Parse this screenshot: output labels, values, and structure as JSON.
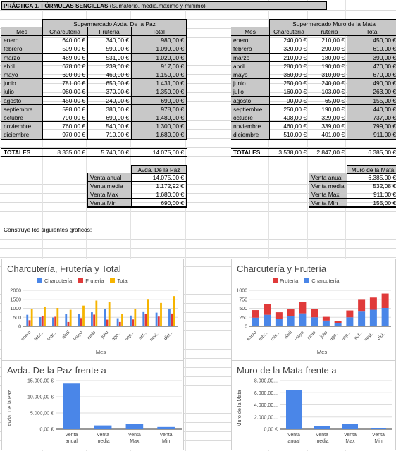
{
  "title_bold": "PRÁCTICA 1. FÓRMULAS SENCILLAS",
  "title_rest": "(Sumatorio, media,máximo y mínimo)",
  "t1": {
    "store": "Supermercado Avda. De la Paz",
    "headers": [
      "Mes",
      "Charcutería",
      "Frutería",
      "Total"
    ],
    "rows": [
      [
        "enero",
        "640,00 €",
        "340,00 €",
        "980,00 €"
      ],
      [
        "febrero",
        "509,00 €",
        "590,00 €",
        "1.099,00 €"
      ],
      [
        "marzo",
        "489,00 €",
        "531,00 €",
        "1.020,00 €"
      ],
      [
        "abril",
        "678,00 €",
        "239,00 €",
        "917,00 €"
      ],
      [
        "mayo",
        "690,00 €",
        "460,00 €",
        "1.150,00 €"
      ],
      [
        "junio",
        "781,00 €",
        "650,00 €",
        "1.431,00 €"
      ],
      [
        "julio",
        "980,00 €",
        "370,00 €",
        "1.350,00 €"
      ],
      [
        "agosto",
        "450,00 €",
        "240,00 €",
        "690,00 €"
      ],
      [
        "septiembre",
        "598,00 €",
        "380,00 €",
        "978,00 €"
      ],
      [
        "octubre",
        "790,00 €",
        "690,00 €",
        "1.480,00 €"
      ],
      [
        "noviembre",
        "760,00 €",
        "540,00 €",
        "1.300,00 €"
      ],
      [
        "diciembre",
        "970,00 €",
        "710,00 €",
        "1.680,00 €"
      ]
    ],
    "totals": [
      "TOTALES",
      "8.335,00 €",
      "5.740,00 €",
      "14.075,00 €"
    ],
    "stats_header": "Avda. De la Paz",
    "stats": [
      [
        "Venta anual",
        "14.075,00 €"
      ],
      [
        "Venta media",
        "1.172,92 €"
      ],
      [
        "Venta Max",
        "1.680,00 €"
      ],
      [
        "Venta Min",
        "690,00 €"
      ]
    ]
  },
  "t2": {
    "store": "Supermercado Muro de la Mata",
    "headers": [
      "Mes",
      "Charcutería",
      "Frutería",
      "Total"
    ],
    "rows": [
      [
        "enero",
        "240,00 €",
        "210,00 €",
        "450,00 €"
      ],
      [
        "febrero",
        "320,00 €",
        "290,00 €",
        "610,00 €"
      ],
      [
        "marzo",
        "210,00 €",
        "180,00 €",
        "390,00 €"
      ],
      [
        "abril",
        "280,00 €",
        "190,00 €",
        "470,00 €"
      ],
      [
        "mayo",
        "360,00 €",
        "310,00 €",
        "670,00 €"
      ],
      [
        "junio",
        "250,00 €",
        "240,00 €",
        "490,00 €"
      ],
      [
        "julio",
        "160,00 €",
        "103,00 €",
        "263,00 €"
      ],
      [
        "agosto",
        "90,00 €",
        "65,00 €",
        "155,00 €"
      ],
      [
        "septiembre",
        "250,00 €",
        "190,00 €",
        "440,00 €"
      ],
      [
        "octubre",
        "408,00 €",
        "329,00 €",
        "737,00 €"
      ],
      [
        "noviembre",
        "460,00 €",
        "339,00 €",
        "799,00 €"
      ],
      [
        "diciembre",
        "510,00 €",
        "401,00 €",
        "911,00 €"
      ]
    ],
    "totals": [
      "TOTALES",
      "3.538,00 €",
      "2.847,00 €",
      "6.385,00 €"
    ],
    "stats_header": "Muro de la Mata",
    "stats": [
      [
        "Venta anual",
        "6.385,00 €"
      ],
      [
        "Venta media",
        "532,08 €"
      ],
      [
        "Venta Max",
        "911,00 €"
      ],
      [
        "Venta Min",
        "155,00 €"
      ]
    ]
  },
  "instruction": "Construye los siguientes gráficos:",
  "colors": {
    "charcuteria": "#4a86e8",
    "fruteria": "#e03a3a",
    "total": "#f6b400",
    "grid": "#000000"
  },
  "chart_data": [
    {
      "type": "bar",
      "title": "Charcutería, Frutería y Total",
      "xlabel": "Mes",
      "categories": [
        "enero",
        "febr...",
        "mar...",
        "abril",
        "mayo",
        "junio",
        "julio",
        "ago...",
        "sep...",
        "oct...",
        "novi...",
        "dici..."
      ],
      "yticks": [
        "2000",
        "1500",
        "1000",
        "500",
        "0"
      ],
      "ylim": [
        0,
        2000
      ],
      "series": [
        {
          "name": "Charcutería",
          "values": [
            640,
            509,
            489,
            678,
            690,
            781,
            980,
            450,
            598,
            790,
            760,
            970
          ]
        },
        {
          "name": "Frutería",
          "values": [
            340,
            590,
            531,
            239,
            460,
            650,
            370,
            240,
            380,
            690,
            540,
            710
          ]
        },
        {
          "name": "Total",
          "values": [
            980,
            1099,
            1020,
            917,
            1150,
            1431,
            1350,
            690,
            978,
            1480,
            1300,
            1680
          ]
        }
      ],
      "legend": "top"
    },
    {
      "type": "bar",
      "stacked": true,
      "title": "Charcutería y Frutería",
      "xlabel": "Mes",
      "categories": [
        "enero",
        "febr...",
        "mar...",
        "abril",
        "mayo",
        "junio",
        "julio",
        "ago...",
        "sep...",
        "oct...",
        "novi...",
        "dici..."
      ],
      "yticks": [
        "1000",
        "750",
        "500",
        "250",
        "0"
      ],
      "ylim": [
        0,
        1000
      ],
      "series": [
        {
          "name": "Frutería",
          "values": [
            210,
            290,
            180,
            190,
            310,
            240,
            103,
            65,
            190,
            329,
            339,
            401
          ]
        },
        {
          "name": "Charcutería",
          "values": [
            240,
            320,
            210,
            280,
            360,
            250,
            160,
            90,
            250,
            408,
            460,
            510
          ]
        }
      ],
      "legend": "top"
    },
    {
      "type": "bar",
      "title": "Avda. De la Paz frente a",
      "ylabel": "Avda. De la Paz",
      "categories": [
        "Venta anual",
        "Venta media",
        "Venta Max",
        "Venta Min"
      ],
      "yticks": [
        "15.000,00 €",
        "10.000,00 €",
        "5.000,00 €",
        "0,00 €"
      ],
      "ylim": [
        0,
        15000
      ],
      "values": [
        14075,
        1172.92,
        1680,
        690
      ]
    },
    {
      "type": "bar",
      "title": "Muro de la Mata frente a",
      "ylabel": "Muro de la Mata",
      "categories": [
        "Venta anual",
        "Venta media",
        "Venta Max",
        "Venta Min"
      ],
      "yticks": [
        "8.000,00...",
        "6.000,00...",
        "4.000,00...",
        "2.000,00...",
        "0,00 €"
      ],
      "ylim": [
        0,
        8000
      ],
      "values": [
        6385,
        532.08,
        911,
        155
      ]
    }
  ]
}
